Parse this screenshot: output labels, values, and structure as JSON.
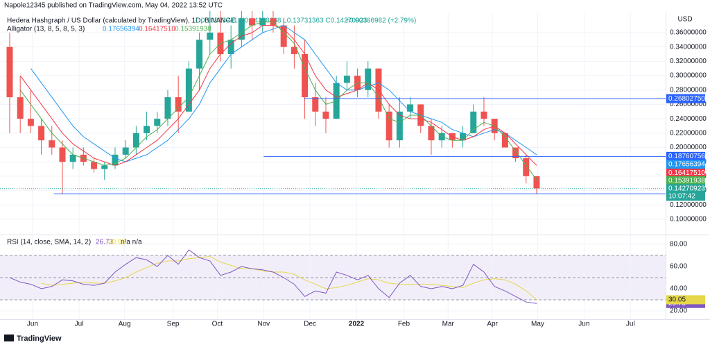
{
  "header": {
    "publisher": "Napole12345 published on TradingView.com, May 04, 2022 13:52 UTC",
    "symbol": "Hedera Hashgraph / US Dollar (calculated by TradingView), 1D, BINANCE",
    "ohlc": "O0.13883941 H0.14338888 L0.13731363 C0.14270923",
    "change": "+0.00386982 (+2.79%)"
  },
  "chart_data": [
    {
      "type": "candlestick",
      "currency": "USD",
      "grid": true,
      "up_color": "#26a69a",
      "down_color": "#ef5350",
      "xlim": [
        -0.92,
        62.24
      ],
      "ylim": [
        0.0797,
        0.388
      ],
      "yticks": [
        {
          "value": 0.1,
          "label": "0.10000000"
        },
        {
          "value": 0.12,
          "label": "0.12000000"
        },
        {
          "value": 0.14,
          "label": "0.14000000"
        },
        {
          "value": 0.16,
          "label": "0.16000000"
        },
        {
          "value": 0.18,
          "label": "0.18000000"
        },
        {
          "value": 0.2,
          "label": "0.20000000"
        },
        {
          "value": 0.22,
          "label": "0.22000000"
        },
        {
          "value": 0.24,
          "label": "0.24000000"
        },
        {
          "value": 0.26,
          "label": "0.26000000"
        },
        {
          "value": 0.28,
          "label": "0.28000000"
        },
        {
          "value": 0.3,
          "label": "0.30000000"
        },
        {
          "value": 0.32,
          "label": "0.32000000"
        },
        {
          "value": 0.34,
          "label": "0.34000000"
        },
        {
          "value": 0.36,
          "label": "0.36000000"
        }
      ],
      "open": [
        0.34,
        0.27,
        0.24,
        0.23,
        0.21,
        0.2,
        0.18,
        0.19,
        0.18,
        0.17,
        0.175,
        0.19,
        0.2,
        0.22,
        0.23,
        0.24,
        0.27,
        0.25,
        0.31,
        0.35,
        0.36,
        0.33,
        0.35,
        0.38,
        0.37,
        0.38,
        0.37,
        0.34,
        0.33,
        0.27,
        0.25,
        0.24,
        0.29,
        0.3,
        0.28,
        0.31,
        0.25,
        0.21,
        0.25,
        0.26,
        0.23,
        0.21,
        0.22,
        0.21,
        0.22,
        0.25,
        0.24,
        0.22,
        0.2,
        0.185,
        0.16
      ],
      "high": [
        0.36,
        0.3,
        0.28,
        0.24,
        0.23,
        0.21,
        0.2,
        0.2,
        0.185,
        0.18,
        0.2,
        0.21,
        0.23,
        0.25,
        0.25,
        0.28,
        0.3,
        0.32,
        0.36,
        0.39,
        0.39,
        0.37,
        0.39,
        0.39,
        0.39,
        0.39,
        0.38,
        0.37,
        0.35,
        0.29,
        0.27,
        0.3,
        0.32,
        0.31,
        0.32,
        0.31,
        0.26,
        0.27,
        0.27,
        0.26,
        0.24,
        0.23,
        0.22,
        0.23,
        0.26,
        0.27,
        0.24,
        0.22,
        0.2,
        0.19,
        0.16
      ],
      "low": [
        0.22,
        0.22,
        0.22,
        0.19,
        0.19,
        0.135,
        0.17,
        0.175,
        0.165,
        0.155,
        0.17,
        0.185,
        0.19,
        0.21,
        0.22,
        0.23,
        0.22,
        0.25,
        0.28,
        0.33,
        0.32,
        0.31,
        0.34,
        0.35,
        0.36,
        0.36,
        0.33,
        0.31,
        0.24,
        0.23,
        0.22,
        0.24,
        0.28,
        0.27,
        0.27,
        0.24,
        0.2,
        0.2,
        0.24,
        0.22,
        0.19,
        0.2,
        0.2,
        0.2,
        0.22,
        0.23,
        0.21,
        0.2,
        0.18,
        0.15,
        0.135
      ],
      "close": [
        0.27,
        0.24,
        0.23,
        0.21,
        0.2,
        0.18,
        0.19,
        0.18,
        0.17,
        0.175,
        0.19,
        0.2,
        0.22,
        0.23,
        0.24,
        0.27,
        0.25,
        0.31,
        0.35,
        0.36,
        0.33,
        0.35,
        0.38,
        0.37,
        0.38,
        0.37,
        0.34,
        0.33,
        0.27,
        0.25,
        0.24,
        0.29,
        0.3,
        0.28,
        0.31,
        0.25,
        0.21,
        0.25,
        0.26,
        0.23,
        0.21,
        0.22,
        0.21,
        0.22,
        0.25,
        0.24,
        0.22,
        0.2,
        0.185,
        0.16,
        0.143
      ],
      "indicator": {
        "title": "Alligator (13, 8, 5, 8, 5, 3)",
        "series": [
          {
            "color": "#2196f3",
            "last": {
              "value": 0.17656394,
              "label": "0.17656394"
            },
            "values": [
              null,
              null,
              0.31,
              0.29,
              0.27,
              0.25,
              0.23,
              0.215,
              0.205,
              0.195,
              0.185,
              0.18,
              0.185,
              0.19,
              0.2,
              0.21,
              0.225,
              0.24,
              0.26,
              0.29,
              0.31,
              0.33,
              0.34,
              0.35,
              0.36,
              0.365,
              0.37,
              0.36,
              0.35,
              0.33,
              0.31,
              0.29,
              0.28,
              0.28,
              0.285,
              0.29,
              0.28,
              0.265,
              0.25,
              0.245,
              0.24,
              0.235,
              0.225,
              0.22,
              0.215,
              0.22,
              0.225,
              0.22,
              0.21,
              0.2,
              0.19
            ]
          },
          {
            "color": "#f23645",
            "last": {
              "value": 0.1641751,
              "label": "0.16417510"
            },
            "values": [
              null,
              0.3,
              0.28,
              0.26,
              0.24,
              0.22,
              0.205,
              0.195,
              0.185,
              0.18,
              0.175,
              0.18,
              0.19,
              0.2,
              0.21,
              0.225,
              0.24,
              0.26,
              0.28,
              0.31,
              0.33,
              0.345,
              0.355,
              0.36,
              0.37,
              0.37,
              0.365,
              0.35,
              0.33,
              0.3,
              0.28,
              0.27,
              0.275,
              0.28,
              0.29,
              0.28,
              0.26,
              0.245,
              0.24,
              0.24,
              0.235,
              0.225,
              0.215,
              0.21,
              0.215,
              0.225,
              0.23,
              0.22,
              0.205,
              0.19,
              0.175
            ]
          },
          {
            "color": "#4caf50",
            "last": {
              "value": 0.15391938,
              "label": "0.15391938"
            },
            "values": [
              null,
              0.28,
              0.26,
              0.24,
              0.22,
              0.205,
              0.19,
              0.185,
              0.18,
              0.175,
              0.178,
              0.185,
              0.2,
              0.215,
              0.225,
              0.24,
              0.255,
              0.27,
              0.3,
              0.33,
              0.345,
              0.35,
              0.36,
              0.37,
              0.375,
              0.375,
              0.36,
              0.345,
              0.31,
              0.28,
              0.26,
              0.265,
              0.28,
              0.29,
              0.29,
              0.27,
              0.24,
              0.235,
              0.245,
              0.245,
              0.23,
              0.215,
              0.21,
              0.21,
              0.225,
              0.235,
              0.23,
              0.215,
              0.195,
              0.175,
              0.155
            ]
          }
        ]
      },
      "hlines": [
        {
          "value": 0.2680275,
          "label": "0.26802750",
          "from": 27.9,
          "color": "#2962ff"
        },
        {
          "value": 0.18760756,
          "label": "0.18760756",
          "from": 24.1,
          "color": "#2962ff"
        },
        {
          "value": 0.13557113,
          "label": "0.13557113",
          "from": 4.2,
          "color": "#2962ff"
        }
      ],
      "last_price": {
        "value": 0.14270923,
        "label": "0.14270923",
        "countdown": "10:07:42",
        "color": "#26a69a"
      }
    },
    {
      "type": "line",
      "title": "RSI (14, close, SMA, 14, 2)",
      "na": "n/a n/a",
      "grid": true,
      "xlim": [
        -0.92,
        62.24
      ],
      "ylim": [
        12.5,
        87.5
      ],
      "yticks": [
        {
          "value": 20,
          "label": "20.00"
        },
        {
          "value": 40,
          "label": "40.00"
        },
        {
          "value": 60,
          "label": "60.00"
        },
        {
          "value": 80,
          "label": "80.00"
        }
      ],
      "bands": [
        70,
        50,
        30
      ],
      "xticks": [
        {
          "value": 2.17,
          "label": "Jun"
        },
        {
          "value": 6.58,
          "label": "Jul"
        },
        {
          "value": 10.9,
          "label": "Aug"
        },
        {
          "value": 15.5,
          "label": "Sep"
        },
        {
          "value": 19.7,
          "label": "Oct"
        },
        {
          "value": 24.1,
          "label": "Nov"
        },
        {
          "value": 28.5,
          "label": "Dec"
        },
        {
          "value": 32.9,
          "label": "2022"
        },
        {
          "value": 37.4,
          "label": "Feb"
        },
        {
          "value": 41.6,
          "label": "Mar"
        },
        {
          "value": 45.8,
          "label": "Apr"
        },
        {
          "value": 50.1,
          "label": "May"
        },
        {
          "value": 54.5,
          "label": "Jun"
        },
        {
          "value": 58.9,
          "label": "Jul"
        }
      ],
      "series": [
        {
          "color": "#7e57c2",
          "last": {
            "value": 26.73,
            "label": "26.73"
          },
          "values": [
            50,
            46,
            44,
            40,
            42,
            48,
            47,
            44,
            43,
            45,
            55,
            62,
            68,
            66,
            60,
            70,
            62,
            75,
            68,
            65,
            52,
            55,
            60,
            58,
            57,
            55,
            50,
            44,
            33,
            38,
            36,
            55,
            52,
            48,
            52,
            40,
            32,
            45,
            52,
            42,
            40,
            42,
            40,
            43,
            62,
            55,
            42,
            38,
            33,
            28,
            26.73
          ]
        },
        {
          "color": "#e5d64a",
          "last": {
            "value": 30.05,
            "label": "30.05"
          },
          "values": [
            null,
            null,
            null,
            45,
            43,
            44,
            45,
            46,
            45,
            45,
            47,
            50,
            55,
            59,
            63,
            65,
            65,
            67,
            68,
            69,
            64,
            61,
            58,
            58,
            56,
            55,
            55,
            53,
            48,
            44,
            40,
            41,
            43,
            46,
            49,
            48,
            45,
            44,
            44,
            44,
            44,
            43,
            42,
            41,
            45,
            48,
            49,
            48,
            44,
            38,
            30.05
          ]
        }
      ]
    }
  ],
  "footer": "TradingView"
}
